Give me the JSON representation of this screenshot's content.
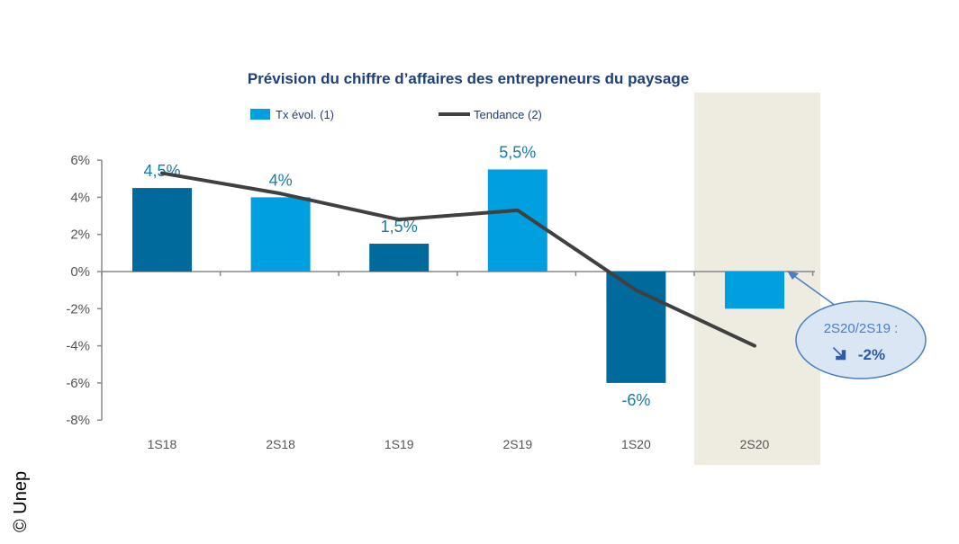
{
  "copyright": "© Unep",
  "colors": {
    "dark_bar": "#006a9c",
    "light_bar": "#00a0e0",
    "trend": "#404040",
    "title": "#1f3f7a",
    "label": "#1a7aaa",
    "highlight": "#eeebe0"
  },
  "chart_data": {
    "type": "bar",
    "title": "Prévision du chiffre d’affaires des entrepreneurs du paysage",
    "xlabel": "",
    "ylabel": "",
    "ylim": [
      -8,
      6
    ],
    "yticks": [
      6,
      4,
      2,
      0,
      -2,
      -4,
      -6,
      -8
    ],
    "ytick_labels": [
      "6%",
      "4%",
      "2%",
      "0%",
      "-2%",
      "-4%",
      "-6%",
      "-8%"
    ],
    "categories": [
      "1S18",
      "2S18",
      "1S19",
      "2S19",
      "1S20",
      "2S20"
    ],
    "legend": {
      "placement": "top",
      "entries": [
        "Tx évol. (1)",
        "Tendance (2)"
      ]
    },
    "series": [
      {
        "name": "Tx évol. (1)",
        "type": "bar",
        "values": [
          4.5,
          4,
          1.5,
          5.5,
          -6,
          -2
        ],
        "shade": [
          "dark",
          "light",
          "dark",
          "light",
          "dark",
          "light"
        ],
        "data_labels": [
          "4,5%",
          "4%",
          "1,5%",
          "5,5%",
          "-6%",
          ""
        ]
      },
      {
        "name": "Tendance (2)",
        "type": "line",
        "values": [
          5.3,
          4.2,
          2.8,
          3.3,
          -1.0,
          -4.0
        ]
      }
    ],
    "highlighted_category": "2S20",
    "annotation": {
      "line1": "2S20/2S19 :",
      "line2": "-2%",
      "icon": "arrow-down-right-icon"
    }
  }
}
